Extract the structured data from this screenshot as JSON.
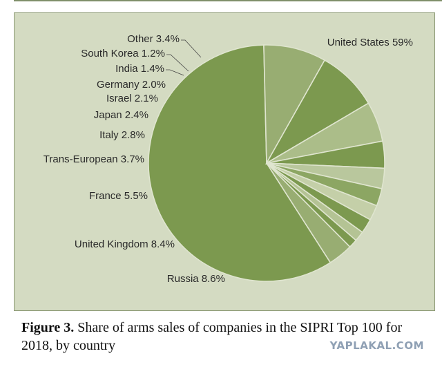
{
  "chart_data": {
    "type": "pie",
    "title": "",
    "slices": [
      {
        "label": "United States",
        "value": 59,
        "value_label": "59%",
        "color": "#7c994f"
      },
      {
        "label": "Russia",
        "value": 8.6,
        "value_label": "8.6%",
        "color": "#98ad72"
      },
      {
        "label": "United Kingdom",
        "value": 8.4,
        "value_label": "8.4%",
        "color": "#7c994f"
      },
      {
        "label": "France",
        "value": 5.5,
        "value_label": "5.5%",
        "color": "#abbd89"
      },
      {
        "label": "Trans-European",
        "value": 3.7,
        "value_label": "3.7%",
        "color": "#7c994f"
      },
      {
        "label": "Italy",
        "value": 2.8,
        "value_label": "2.8%",
        "color": "#b9c79d"
      },
      {
        "label": "Japan",
        "value": 2.4,
        "value_label": "2.4%",
        "color": "#8ca663"
      },
      {
        "label": "Israel",
        "value": 2.1,
        "value_label": "2.1%",
        "color": "#c4cfa8"
      },
      {
        "label": "Germany",
        "value": 2.0,
        "value_label": "2.0%",
        "color": "#7c994f"
      },
      {
        "label": "India",
        "value": 1.4,
        "value_label": "1.4%",
        "color": "#b4c394"
      },
      {
        "label": "South Korea",
        "value": 1.2,
        "value_label": "1.2%",
        "color": "#7c994f"
      },
      {
        "label": "Other",
        "value": 3.4,
        "value_label": "3.4%",
        "color": "#98ad72"
      }
    ],
    "background_color": "#d4dbc2"
  },
  "caption": {
    "figure_label": "Figure 3.",
    "text": " Share of arms sales of companies in the SIPRI Top 100 for 2018, by country"
  },
  "watermark": "YAPLAKAL.COM"
}
